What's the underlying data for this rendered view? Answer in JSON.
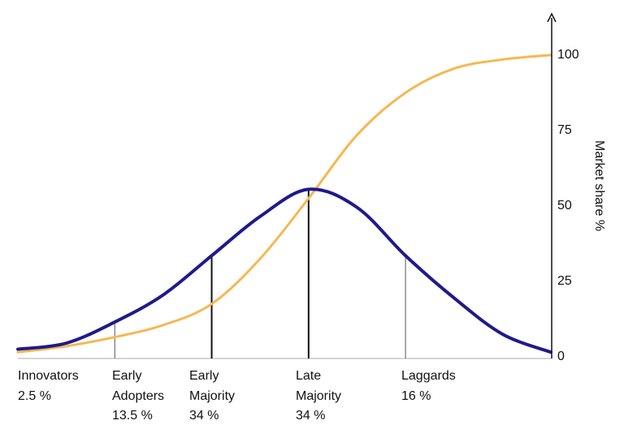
{
  "chart_data": {
    "type": "line",
    "title": "",
    "xlabel": "",
    "ylabel": "Market share %",
    "yticks": [
      "0",
      "25",
      "50",
      "75",
      "100"
    ],
    "ylim": [
      0,
      100
    ],
    "grid": false,
    "series": [
      {
        "kind": "bell",
        "color": "#1e1a8c",
        "x": [
          -3,
          -2.5,
          -2,
          -1.5,
          -1,
          -0.5,
          0,
          0.5,
          1,
          1.5,
          2,
          2.5
        ],
        "y": [
          2,
          4,
          11,
          20,
          33,
          46,
          55,
          49,
          33,
          19,
          7,
          1
        ]
      },
      {
        "kind": "cumulative",
        "color": "#f5b851",
        "x": [
          -3,
          -2.5,
          -2,
          -1.5,
          -1,
          -0.5,
          0,
          0.5,
          1,
          1.5,
          2,
          2.5
        ],
        "y": [
          1,
          3,
          6,
          10,
          17,
          32,
          52,
          73,
          87,
          95,
          98,
          99.5
        ]
      }
    ],
    "dividers": [
      {
        "x": -2,
        "weight": "thin"
      },
      {
        "x": -1,
        "weight": "thick"
      },
      {
        "x": 0,
        "weight": "thick"
      },
      {
        "x": 1,
        "weight": "thin"
      }
    ],
    "segments": [
      {
        "lines": [
          "Innovators",
          "2.5 %"
        ]
      },
      {
        "lines": [
          "Early",
          "Adopters",
          "13.5 %"
        ]
      },
      {
        "lines": [
          "Early",
          "Majority",
          "34 %"
        ]
      },
      {
        "lines": [
          "Late",
          "Majority",
          "34 %"
        ]
      },
      {
        "lines": [
          "Laggards",
          "16 %"
        ]
      }
    ]
  }
}
